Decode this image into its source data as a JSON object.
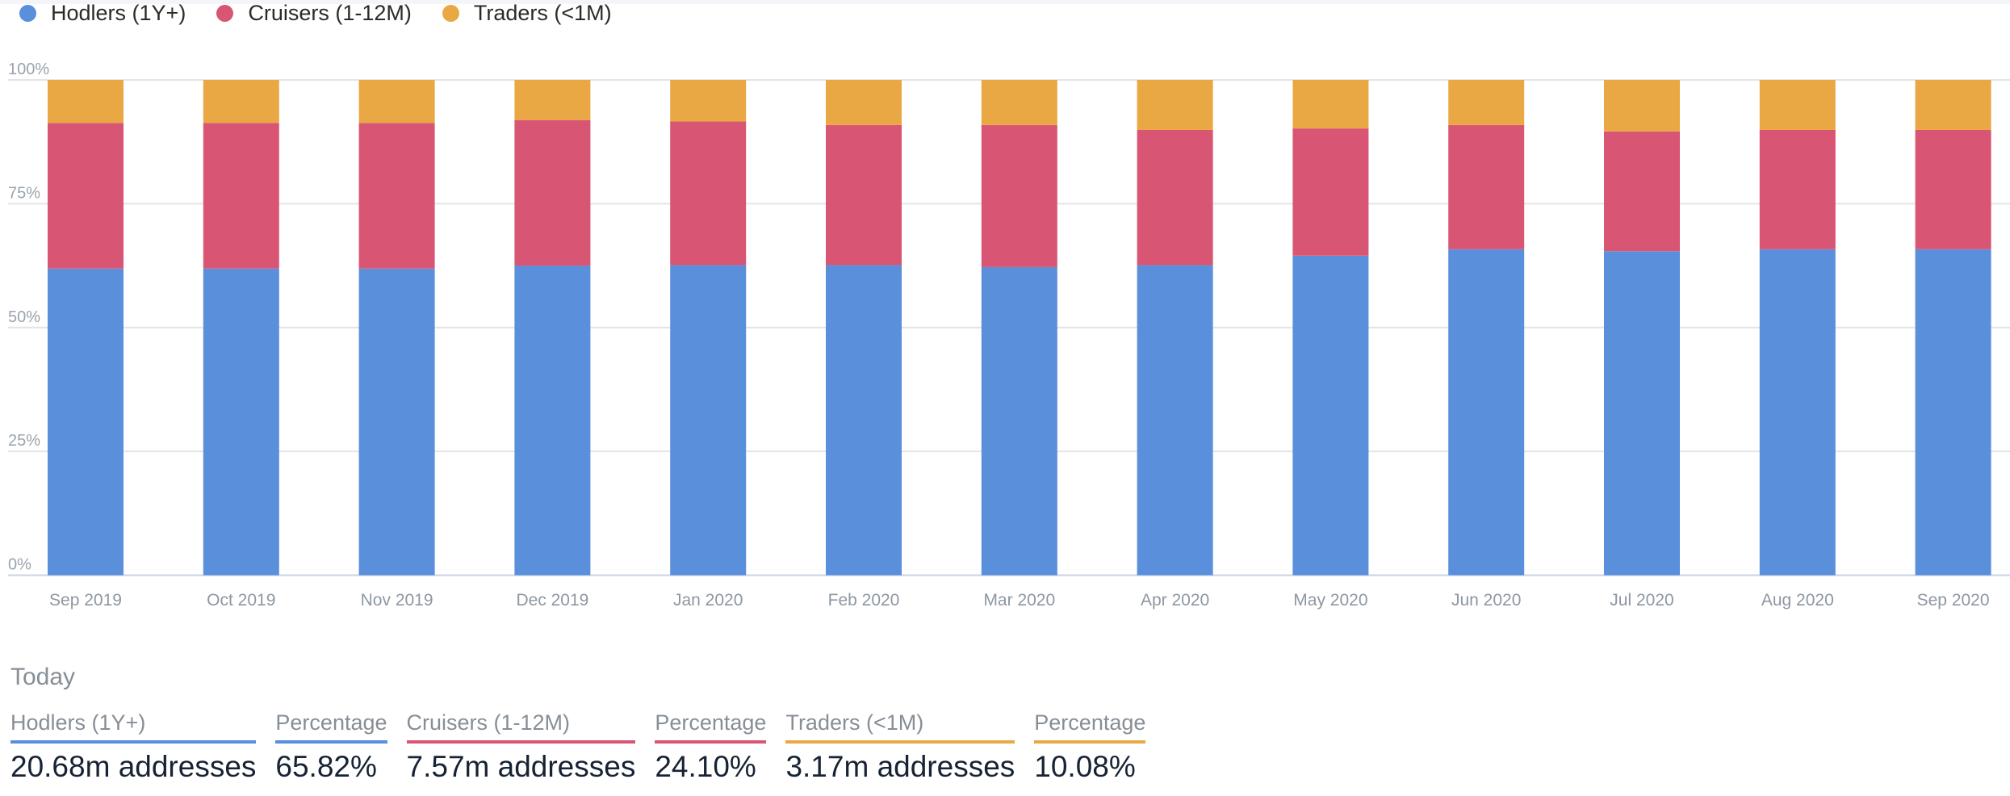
{
  "legend": [
    {
      "label": "Hodlers (1Y+)",
      "color": "#5a8fdb"
    },
    {
      "label": "Cruisers (1-12M)",
      "color": "#d95574"
    },
    {
      "label": "Traders (<1M)",
      "color": "#e9a844"
    }
  ],
  "chart_data": {
    "type": "bar",
    "stacked": true,
    "normalized": true,
    "title": "",
    "xlabel": "",
    "ylabel": "",
    "ylim": [
      0,
      100
    ],
    "y_ticks": [
      "0%",
      "25%",
      "50%",
      "75%",
      "100%"
    ],
    "y_tick_values": [
      0,
      25,
      50,
      75,
      100
    ],
    "grid": true,
    "legend_position": "top-left",
    "categories": [
      "Sep 2019",
      "Oct 2019",
      "Nov 2019",
      "Dec 2019",
      "Jan 2020",
      "Feb 2020",
      "Mar 2020",
      "Apr 2020",
      "May 2020",
      "Jun 2020",
      "Jul 2020",
      "Aug 2020",
      "Sep 2020"
    ],
    "series": [
      {
        "name": "Hodlers (1Y+)",
        "color": "#5a8fdb",
        "values": [
          61.9,
          61.9,
          61.9,
          62.5,
          62.6,
          62.6,
          62.2,
          62.6,
          64.5,
          65.8,
          65.4,
          65.8,
          65.8
        ]
      },
      {
        "name": "Cruisers (1-12M)",
        "color": "#d95574",
        "values": [
          29.4,
          29.4,
          29.4,
          29.4,
          29.0,
          28.3,
          28.7,
          27.3,
          25.7,
          25.1,
          24.2,
          24.1,
          24.1
        ]
      },
      {
        "name": "Traders (<1M)",
        "color": "#e9a844",
        "values": [
          8.7,
          8.7,
          8.7,
          8.1,
          8.4,
          9.1,
          9.1,
          10.1,
          9.8,
          9.1,
          10.4,
          10.1,
          10.1
        ]
      }
    ]
  },
  "summary": {
    "title": "Today",
    "stats": [
      {
        "header": "Hodlers (1Y+)",
        "value": "20.68m addresses",
        "color": "#5a8fdb"
      },
      {
        "header": "Percentage",
        "value": "65.82%",
        "color": "#5a8fdb"
      },
      {
        "header": "Cruisers (1-12M)",
        "value": "7.57m addresses",
        "color": "#d95574"
      },
      {
        "header": "Percentage",
        "value": "24.10%",
        "color": "#d95574"
      },
      {
        "header": "Traders (<1M)",
        "value": "3.17m addresses",
        "color": "#e9a844"
      },
      {
        "header": "Percentage",
        "value": "10.08%",
        "color": "#e9a844"
      }
    ]
  }
}
